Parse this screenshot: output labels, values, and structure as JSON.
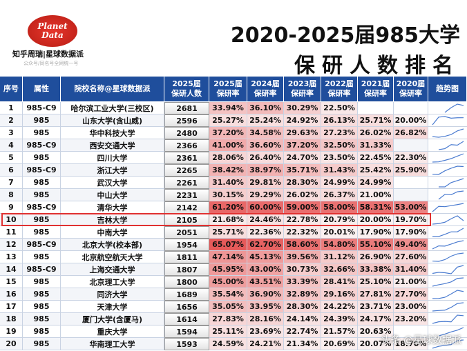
{
  "header": {
    "logo": [
      "Planet",
      "Data"
    ],
    "brand": "知乎周瑞|星球数据派",
    "note": "公众号/同名号全网统一号",
    "title_line1": "2020-2025届985大学",
    "title_line2": "保研人数排名"
  },
  "table": {
    "columns": [
      "序号",
      "属性",
      "院校名称@星球数据派",
      [
        "2025届",
        "保研人数"
      ],
      [
        "2025届",
        "保研率"
      ],
      [
        "2024届",
        "保研率"
      ],
      [
        "2023届",
        "保研率"
      ],
      [
        "2022届",
        "保研率"
      ],
      [
        "2021届",
        "保研率"
      ],
      [
        "2020届",
        "保研率"
      ],
      "趋势图"
    ],
    "rows": [
      [
        "1",
        "985-C9",
        "哈尔滨工业大学(三校区)",
        "2681",
        "33.94%",
        "36.10%",
        "30.29%",
        "22.50%",
        null,
        null
      ],
      [
        "2",
        "985",
        "山东大学(含山威)",
        "2596",
        "25.27%",
        "25.24%",
        "24.92%",
        "26.13%",
        "25.71%",
        "20.00%"
      ],
      [
        "3",
        "985",
        "华中科技大学",
        "2480",
        "37.20%",
        "34.58%",
        "29.63%",
        "27.23%",
        "26.02%",
        "26.82%"
      ],
      [
        "4",
        "985-C9",
        "西安交通大学",
        "2366",
        "41.00%",
        "36.60%",
        "37.20%",
        "32.50%",
        "31.33%",
        null
      ],
      [
        "5",
        "985",
        "四川大学",
        "2361",
        "28.06%",
        "26.40%",
        "24.70%",
        "23.50%",
        "22.45%",
        "22.30%"
      ],
      [
        "6",
        "985-C9",
        "浙江大学",
        "2265",
        "38.42%",
        "38.97%",
        "35.71%",
        "31.43%",
        "25.42%",
        "25.90%"
      ],
      [
        "7",
        "985",
        "武汉大学",
        "2261",
        "31.40%",
        "29.81%",
        "28.30%",
        "24.99%",
        "24.99%",
        null
      ],
      [
        "8",
        "985",
        "中山大学",
        "2231",
        "30.15%",
        "29.29%",
        "26.02%",
        "26.37%",
        "21.00%",
        null
      ],
      [
        "9",
        "985-C9",
        "清华大学",
        "2142",
        "61.20%",
        "60.00%",
        "59.00%",
        "58.00%",
        "58.31%",
        "53.00%"
      ],
      [
        "10",
        "985",
        "吉林大学",
        "2105",
        "21.68%",
        "24.46%",
        "22.78%",
        "20.79%",
        "20.00%",
        "19.70%"
      ],
      [
        "11",
        "985",
        "中南大学",
        "2051",
        "25.71%",
        "22.36%",
        "22.32%",
        "20.01%",
        "17.90%",
        "17.90%"
      ],
      [
        "12",
        "985-C9",
        "北京大学(校本部)",
        "1954",
        "65.07%",
        "62.70%",
        "58.60%",
        "54.80%",
        "55.10%",
        "49.40%"
      ],
      [
        "13",
        "985",
        "北京航空航天大学",
        "1811",
        "47.14%",
        "45.13%",
        "39.56%",
        "31.12%",
        "26.90%",
        "27.60%"
      ],
      [
        "14",
        "985-C9",
        "上海交通大学",
        "1807",
        "45.95%",
        "43.00%",
        "30.73%",
        "32.66%",
        "33.38%",
        "31.40%"
      ],
      [
        "15",
        "985",
        "北京理工大学",
        "1800",
        "45.00%",
        "43.51%",
        "33.39%",
        "28.41%",
        "25.10%",
        "21.00%"
      ],
      [
        "16",
        "985",
        "同济大学",
        "1689",
        "35.54%",
        "36.90%",
        "32.89%",
        "29.16%",
        "27.81%",
        "27.70%"
      ],
      [
        "17",
        "985",
        "天津大学",
        "1656",
        "35.05%",
        "33.95%",
        "28.30%",
        "24.22%",
        "23.71%",
        "23.00%"
      ],
      [
        "18",
        "985",
        "厦门大学(含厦马)",
        "1614",
        "27.83%",
        "28.16%",
        "24.14%",
        "24.39%",
        "24.17%",
        "23.20%"
      ],
      [
        "19",
        "985",
        "重庆大学",
        "1594",
        "25.11%",
        "23.69%",
        "22.74%",
        "21.57%",
        "20.63%",
        null
      ],
      [
        "20",
        "985",
        "华南理工大学",
        "1593",
        "24.59%",
        "24.21%",
        "21.34%",
        "20.69%",
        "20.07%",
        "18.70%"
      ]
    ],
    "highlight_row": 9
  },
  "watermark": "头条 @星球数据派"
}
